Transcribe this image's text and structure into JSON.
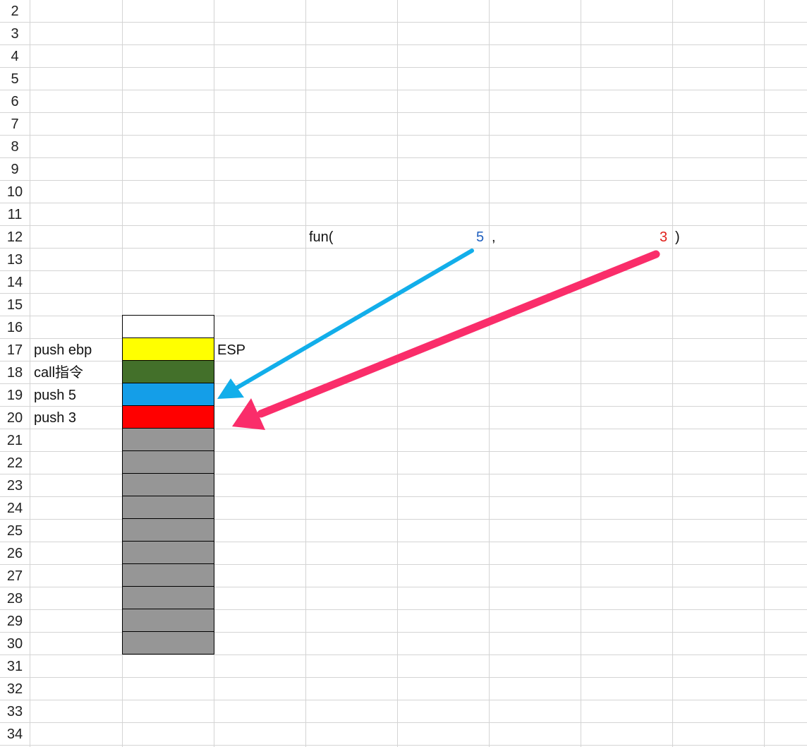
{
  "sheet": {
    "first_row": 2,
    "row_numbers": [
      "2",
      "3",
      "4",
      "5",
      "6",
      "7",
      "8",
      "9",
      "10",
      "11",
      "12",
      "13",
      "14",
      "15",
      "16",
      "17",
      "18",
      "19",
      "20",
      "21",
      "22",
      "23",
      "24",
      "25",
      "26",
      "27",
      "28",
      "29",
      "30",
      "31",
      "32",
      "33",
      "34"
    ]
  },
  "formula": {
    "fun_label": "fun(",
    "arg1": "5",
    "comma": ",",
    "arg2": "3",
    "close_paren": ")",
    "arg1_color": "#1f5fbf",
    "arg2_color": "#e0201b"
  },
  "labels": {
    "push_ebp": "push ebp",
    "call": "call指令",
    "push_5": "push 5",
    "push_3": "push 3",
    "esp": "ESP"
  },
  "stack": {
    "cells": [
      {
        "row": 16,
        "color": "#ffffff"
      },
      {
        "row": 17,
        "color": "#ffff00"
      },
      {
        "row": 18,
        "color": "#43702a"
      },
      {
        "row": 19,
        "color": "#149ee8"
      },
      {
        "row": 20,
        "color": "#ff0000"
      },
      {
        "row": 21,
        "color": "#969696"
      },
      {
        "row": 22,
        "color": "#969696"
      },
      {
        "row": 23,
        "color": "#969696"
      },
      {
        "row": 24,
        "color": "#969696"
      },
      {
        "row": 25,
        "color": "#969696"
      },
      {
        "row": 26,
        "color": "#969696"
      },
      {
        "row": 27,
        "color": "#969696"
      },
      {
        "row": 28,
        "color": "#969696"
      },
      {
        "row": 29,
        "color": "#969696"
      },
      {
        "row": 30,
        "color": "#969696"
      }
    ]
  },
  "arrows": {
    "blue_color": "#12aeea",
    "red_color": "#fa2d6a"
  }
}
